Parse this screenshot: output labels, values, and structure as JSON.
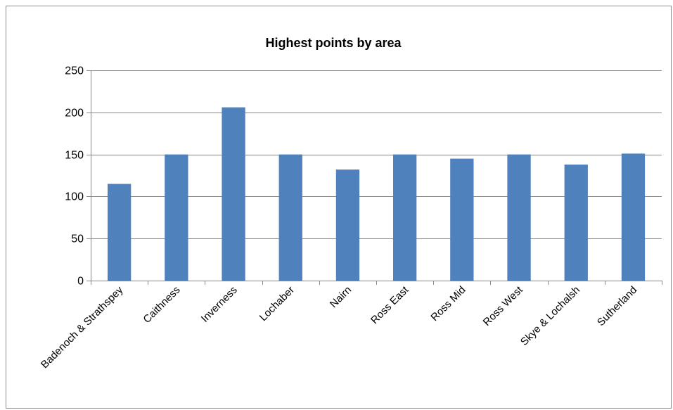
{
  "chart_data": {
    "type": "bar",
    "title": "Highest points by area",
    "xlabel": "",
    "ylabel": "",
    "categories": [
      "Badenoch & Strathspey",
      "Caithness",
      "Inverness",
      "Lochaber",
      "Nairn",
      "Ross East",
      "Ross Mid",
      "Ross West",
      "Skye & Lochalsh",
      "Sutherland"
    ],
    "values": [
      115,
      150,
      206,
      150,
      132,
      150,
      145,
      150,
      138,
      151
    ],
    "ylim": [
      0,
      250
    ],
    "yticks": [
      0,
      50,
      100,
      150,
      200,
      250
    ],
    "grid": true,
    "legend": "none",
    "bar_color": "#4f81bd",
    "grid_color": "#868686",
    "axis_color": "#868686"
  }
}
